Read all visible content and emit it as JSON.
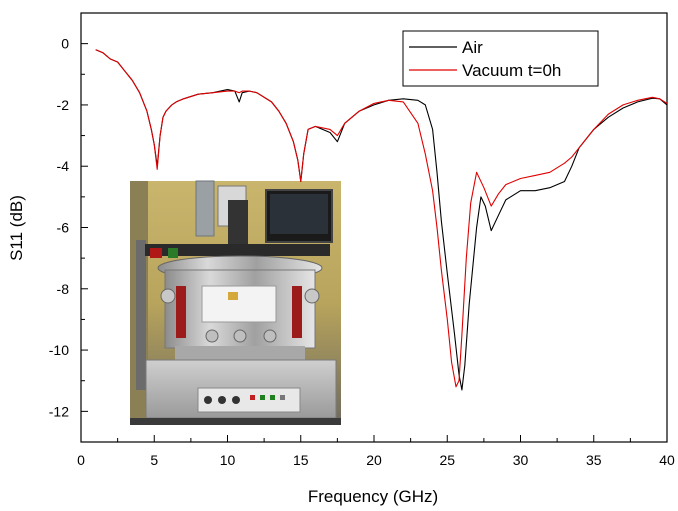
{
  "chart_data": {
    "type": "line",
    "title": "",
    "xlabel": "Frequency (GHz)",
    "ylabel": "S11 (dB)",
    "xlim": [
      0,
      40
    ],
    "ylim": [
      -13,
      1
    ],
    "xticks": [
      0,
      5,
      10,
      15,
      20,
      25,
      30,
      35,
      40
    ],
    "yticks": [
      0,
      -2,
      -4,
      -6,
      -8,
      -10,
      -12
    ],
    "grid": false,
    "legend_position": "top-right",
    "series": [
      {
        "name": "Air",
        "color": "#000000",
        "x": [
          1.0,
          1.5,
          2.0,
          2.5,
          3.0,
          3.5,
          4.0,
          4.5,
          4.8,
          5.0,
          5.2,
          5.4,
          5.6,
          5.8,
          6.2,
          6.5,
          7.0,
          8.0,
          9.0,
          10.0,
          10.5,
          10.8,
          11.0,
          11.5,
          12.0,
          13.0,
          13.5,
          14.0,
          14.5,
          14.8,
          15.0,
          15.2,
          15.5,
          16.0,
          17.0,
          17.5,
          18.0,
          19.0,
          20.0,
          21.0,
          22.0,
          23.0,
          23.5,
          24.0,
          24.3,
          24.6,
          25.0,
          25.5,
          25.8,
          26.0,
          26.2,
          26.5,
          27.0,
          27.3,
          27.6,
          28.0,
          28.5,
          29.0,
          30.0,
          31.0,
          32.0,
          33.0,
          33.5,
          34.0,
          35.0,
          36.0,
          37.0,
          38.0,
          39.0,
          39.5,
          40.0
        ],
        "values": [
          -0.2,
          -0.3,
          -0.5,
          -0.6,
          -0.9,
          -1.2,
          -1.6,
          -2.2,
          -2.8,
          -3.3,
          -4.0,
          -3.0,
          -2.4,
          -2.2,
          -2.0,
          -1.9,
          -1.8,
          -1.65,
          -1.6,
          -1.5,
          -1.55,
          -1.9,
          -1.6,
          -1.55,
          -1.6,
          -1.9,
          -2.2,
          -2.6,
          -3.2,
          -3.8,
          -4.5,
          -3.6,
          -2.8,
          -2.7,
          -2.9,
          -3.2,
          -2.6,
          -2.2,
          -2.0,
          -1.85,
          -1.8,
          -1.85,
          -2.0,
          -2.8,
          -4.2,
          -5.8,
          -7.5,
          -9.5,
          -10.8,
          -11.3,
          -10.5,
          -8.5,
          -6.0,
          -5.0,
          -5.3,
          -6.1,
          -5.6,
          -5.1,
          -4.8,
          -4.8,
          -4.7,
          -4.5,
          -4.0,
          -3.4,
          -2.8,
          -2.4,
          -2.1,
          -1.9,
          -1.78,
          -1.8,
          -2.0
        ]
      },
      {
        "name": "Vacuum t=0h",
        "color": "#e00000",
        "x": [
          1.0,
          1.5,
          2.0,
          2.5,
          3.0,
          3.5,
          4.0,
          4.5,
          4.8,
          5.0,
          5.2,
          5.4,
          5.6,
          5.8,
          6.2,
          6.5,
          7.0,
          8.0,
          9.0,
          10.0,
          10.5,
          10.8,
          11.0,
          11.5,
          12.0,
          13.0,
          13.5,
          14.0,
          14.5,
          14.8,
          15.0,
          15.2,
          15.5,
          16.0,
          17.0,
          17.5,
          18.0,
          19.0,
          20.0,
          21.0,
          22.0,
          23.0,
          23.5,
          24.0,
          24.3,
          24.6,
          25.0,
          25.3,
          25.6,
          25.8,
          26.0,
          26.3,
          26.6,
          27.0,
          27.5,
          28.0,
          28.5,
          29.0,
          30.0,
          31.0,
          32.0,
          33.0,
          33.5,
          34.0,
          35.0,
          36.0,
          37.0,
          38.0,
          39.0,
          39.5,
          40.0
        ],
        "values": [
          -0.2,
          -0.3,
          -0.5,
          -0.6,
          -0.9,
          -1.2,
          -1.6,
          -2.2,
          -2.8,
          -3.3,
          -4.1,
          -3.0,
          -2.4,
          -2.2,
          -2.0,
          -1.9,
          -1.8,
          -1.65,
          -1.6,
          -1.55,
          -1.55,
          -1.6,
          -1.55,
          -1.55,
          -1.6,
          -1.9,
          -2.2,
          -2.6,
          -3.2,
          -3.8,
          -4.5,
          -3.6,
          -2.8,
          -2.7,
          -2.8,
          -3.0,
          -2.6,
          -2.2,
          -1.95,
          -1.85,
          -1.9,
          -2.6,
          -3.6,
          -4.8,
          -6.0,
          -7.4,
          -9.0,
          -10.4,
          -11.2,
          -11.0,
          -9.5,
          -7.0,
          -5.2,
          -4.2,
          -4.7,
          -5.3,
          -4.9,
          -4.6,
          -4.4,
          -4.3,
          -4.2,
          -3.9,
          -3.7,
          -3.4,
          -2.8,
          -2.3,
          -2.0,
          -1.85,
          -1.75,
          -1.8,
          -1.95
        ]
      }
    ]
  }
}
